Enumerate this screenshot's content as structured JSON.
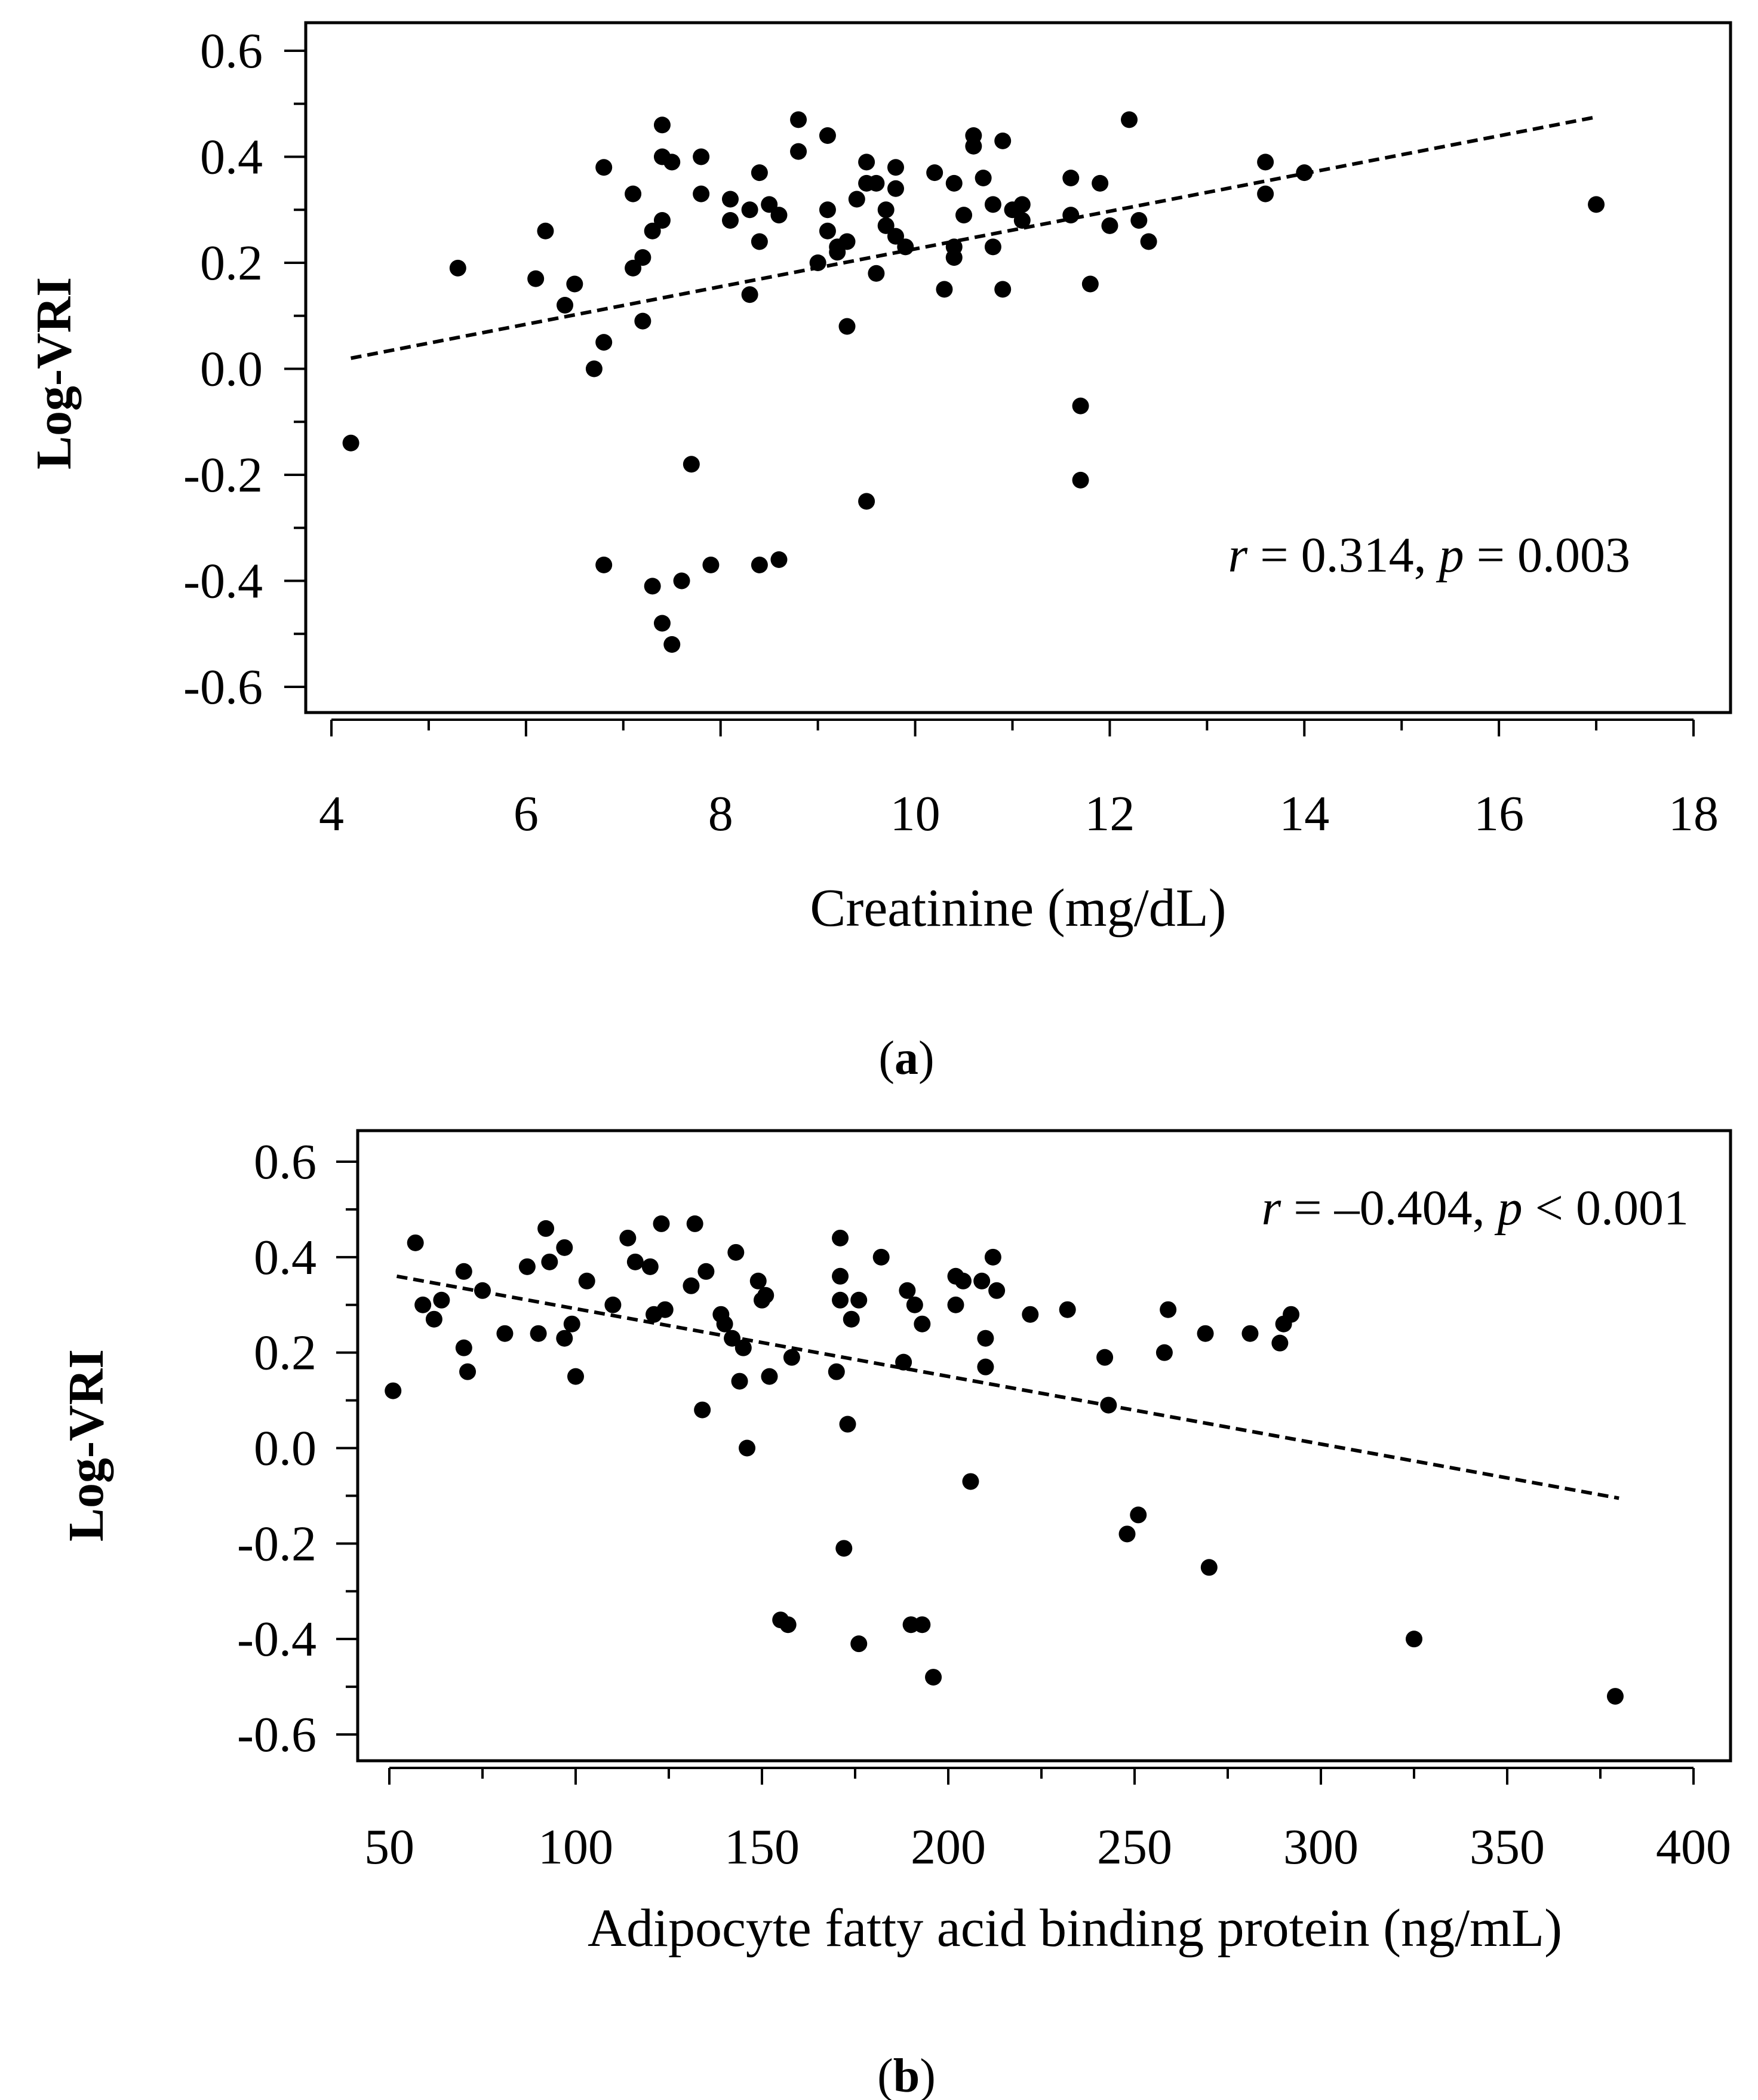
{
  "chart_data": [
    {
      "type": "scatter",
      "title": "",
      "xlabel": "Creatinine (mg/dL)",
      "ylabel": "Log-VRI",
      "xlim": [
        4,
        18
      ],
      "ylim": [
        -0.6,
        0.6
      ],
      "xticks": [
        4,
        6,
        8,
        10,
        12,
        14,
        16,
        18
      ],
      "xtick_labels": [
        "4",
        "6",
        "8",
        "10",
        "12",
        "14",
        "16",
        "18"
      ],
      "yticks": [
        -0.6,
        -0.4,
        -0.2,
        0.0,
        0.2,
        0.4,
        0.6
      ],
      "ytick_labels": [
        "-0.6",
        "-0.4",
        "-0.2",
        "0.0",
        "0.2",
        "0.4",
        "0.6"
      ],
      "annotation": {
        "r_symbol": "r",
        "r_text": " = 0.314, ",
        "p_symbol": "p",
        "p_text": " = 0.003"
      },
      "panel_label": "a",
      "trendline": {
        "x": [
          4.2,
          17.0
        ],
        "y": [
          0.02,
          0.475
        ]
      },
      "points": [
        [
          4.2,
          -0.14
        ],
        [
          5.3,
          0.19
        ],
        [
          6.1,
          0.17
        ],
        [
          6.2,
          0.26
        ],
        [
          6.4,
          0.12
        ],
        [
          6.5,
          0.16
        ],
        [
          6.7,
          0.0
        ],
        [
          6.8,
          0.38
        ],
        [
          6.8,
          0.05
        ],
        [
          6.8,
          -0.37
        ],
        [
          7.1,
          0.33
        ],
        [
          7.1,
          0.19
        ],
        [
          7.2,
          0.21
        ],
        [
          7.2,
          0.09
        ],
        [
          7.3,
          0.26
        ],
        [
          7.3,
          -0.41
        ],
        [
          7.4,
          0.46
        ],
        [
          7.4,
          0.4
        ],
        [
          7.4,
          0.28
        ],
        [
          7.4,
          -0.48
        ],
        [
          7.5,
          0.39
        ],
        [
          7.5,
          -0.52
        ],
        [
          7.6,
          -0.4
        ],
        [
          7.7,
          -0.18
        ],
        [
          7.8,
          0.4
        ],
        [
          7.8,
          0.33
        ],
        [
          7.9,
          -0.37
        ],
        [
          8.1,
          0.32
        ],
        [
          8.1,
          0.28
        ],
        [
          8.3,
          0.3
        ],
        [
          8.3,
          0.14
        ],
        [
          8.4,
          0.37
        ],
        [
          8.4,
          0.24
        ],
        [
          8.4,
          -0.37
        ],
        [
          8.5,
          0.31
        ],
        [
          8.6,
          0.29
        ],
        [
          8.6,
          -0.36
        ],
        [
          8.8,
          0.47
        ],
        [
          8.8,
          0.41
        ],
        [
          9.0,
          0.2
        ],
        [
          9.1,
          0.44
        ],
        [
          9.1,
          0.3
        ],
        [
          9.1,
          0.26
        ],
        [
          9.2,
          0.23
        ],
        [
          9.2,
          0.22
        ],
        [
          9.3,
          0.24
        ],
        [
          9.3,
          0.08
        ],
        [
          9.4,
          0.32
        ],
        [
          9.5,
          0.39
        ],
        [
          9.5,
          0.35
        ],
        [
          9.5,
          -0.25
        ],
        [
          9.6,
          0.35
        ],
        [
          9.6,
          0.18
        ],
        [
          9.7,
          0.3
        ],
        [
          9.7,
          0.27
        ],
        [
          9.8,
          0.38
        ],
        [
          9.8,
          0.34
        ],
        [
          9.8,
          0.25
        ],
        [
          9.9,
          0.23
        ],
        [
          10.2,
          0.37
        ],
        [
          10.3,
          0.15
        ],
        [
          10.4,
          0.35
        ],
        [
          10.4,
          0.23
        ],
        [
          10.4,
          0.21
        ],
        [
          10.5,
          0.29
        ],
        [
          10.6,
          0.44
        ],
        [
          10.6,
          0.42
        ],
        [
          10.7,
          0.36
        ],
        [
          10.8,
          0.31
        ],
        [
          10.8,
          0.23
        ],
        [
          10.9,
          0.43
        ],
        [
          10.9,
          0.15
        ],
        [
          11.0,
          0.3
        ],
        [
          11.1,
          0.31
        ],
        [
          11.1,
          0.28
        ],
        [
          11.6,
          0.36
        ],
        [
          11.6,
          0.29
        ],
        [
          11.7,
          -0.07
        ],
        [
          11.7,
          -0.21
        ],
        [
          11.8,
          0.16
        ],
        [
          11.9,
          0.35
        ],
        [
          12.0,
          0.27
        ],
        [
          12.2,
          0.47
        ],
        [
          12.3,
          0.28
        ],
        [
          12.4,
          0.24
        ],
        [
          13.6,
          0.39
        ],
        [
          13.6,
          0.33
        ],
        [
          14.0,
          0.37
        ],
        [
          17.0,
          0.31
        ]
      ]
    },
    {
      "type": "scatter",
      "title": "",
      "xlabel": "Adipocyte fatty acid binding protein (ng/mL)",
      "ylabel": "Log-VRI",
      "xlim": [
        50,
        400
      ],
      "ylim": [
        -0.6,
        0.6
      ],
      "xticks": [
        50,
        100,
        150,
        200,
        250,
        300,
        350,
        400
      ],
      "xtick_labels": [
        "50",
        "100",
        "150",
        "200",
        "250",
        "300",
        "350",
        "400"
      ],
      "yticks": [
        -0.6,
        -0.4,
        -0.2,
        0.0,
        0.2,
        0.4,
        0.6
      ],
      "ytick_labels": [
        "-0.6",
        "-0.4",
        "-0.2",
        "0.0",
        "0.2",
        "0.4",
        "0.6"
      ],
      "annotation": {
        "r_symbol": "r",
        "r_text": " = –0.404, ",
        "p_symbol": "p",
        "p_text": " < 0.001"
      },
      "panel_label": "b",
      "trendline": {
        "x": [
          52,
          380
        ],
        "y": [
          0.36,
          -0.105
        ]
      },
      "points": [
        [
          51,
          0.12
        ],
        [
          57,
          0.43
        ],
        [
          59,
          0.3
        ],
        [
          62,
          0.27
        ],
        [
          64,
          0.31
        ],
        [
          70,
          0.37
        ],
        [
          70,
          0.21
        ],
        [
          71,
          0.16
        ],
        [
          75,
          0.33
        ],
        [
          81,
          0.24
        ],
        [
          87,
          0.38
        ],
        [
          90,
          0.24
        ],
        [
          92,
          0.46
        ],
        [
          93,
          0.39
        ],
        [
          97,
          0.42
        ],
        [
          97,
          0.23
        ],
        [
          99,
          0.26
        ],
        [
          100,
          0.15
        ],
        [
          103,
          0.35
        ],
        [
          110,
          0.3
        ],
        [
          114,
          0.44
        ],
        [
          116,
          0.39
        ],
        [
          120,
          0.38
        ],
        [
          121,
          0.28
        ],
        [
          123,
          0.47
        ],
        [
          124,
          0.29
        ],
        [
          131,
          0.34
        ],
        [
          132,
          0.47
        ],
        [
          134,
          0.08
        ],
        [
          135,
          0.37
        ],
        [
          139,
          0.28
        ],
        [
          140,
          0.26
        ],
        [
          142,
          0.23
        ],
        [
          143,
          0.41
        ],
        [
          144,
          0.14
        ],
        [
          145,
          0.21
        ],
        [
          146,
          0.0
        ],
        [
          149,
          0.35
        ],
        [
          150,
          0.31
        ],
        [
          151,
          0.32
        ],
        [
          152,
          0.15
        ],
        [
          155,
          -0.36
        ],
        [
          157,
          -0.37
        ],
        [
          158,
          0.19
        ],
        [
          170,
          0.16
        ],
        [
          171,
          0.44
        ],
        [
          171,
          0.36
        ],
        [
          171,
          0.31
        ],
        [
          172,
          -0.21
        ],
        [
          173,
          0.05
        ],
        [
          174,
          0.27
        ],
        [
          176,
          0.31
        ],
        [
          176,
          -0.41
        ],
        [
          182,
          0.4
        ],
        [
          188,
          0.18
        ],
        [
          189,
          0.33
        ],
        [
          190,
          -0.37
        ],
        [
          191,
          0.3
        ],
        [
          193,
          0.26
        ],
        [
          193,
          -0.37
        ],
        [
          196,
          -0.48
        ],
        [
          202,
          0.36
        ],
        [
          202,
          0.3
        ],
        [
          204,
          0.35
        ],
        [
          206,
          -0.07
        ],
        [
          209,
          0.35
        ],
        [
          210,
          0.23
        ],
        [
          210,
          0.17
        ],
        [
          212,
          0.4
        ],
        [
          213,
          0.33
        ],
        [
          222,
          0.28
        ],
        [
          232,
          0.29
        ],
        [
          242,
          0.19
        ],
        [
          243,
          0.09
        ],
        [
          248,
          -0.18
        ],
        [
          251,
          -0.14
        ],
        [
          258,
          0.2
        ],
        [
          259,
          0.29
        ],
        [
          269,
          0.24
        ],
        [
          270,
          -0.25
        ],
        [
          281,
          0.24
        ],
        [
          289,
          0.22
        ],
        [
          290,
          0.26
        ],
        [
          292,
          0.28
        ],
        [
          325,
          -0.4
        ],
        [
          379,
          -0.52
        ]
      ]
    }
  ]
}
